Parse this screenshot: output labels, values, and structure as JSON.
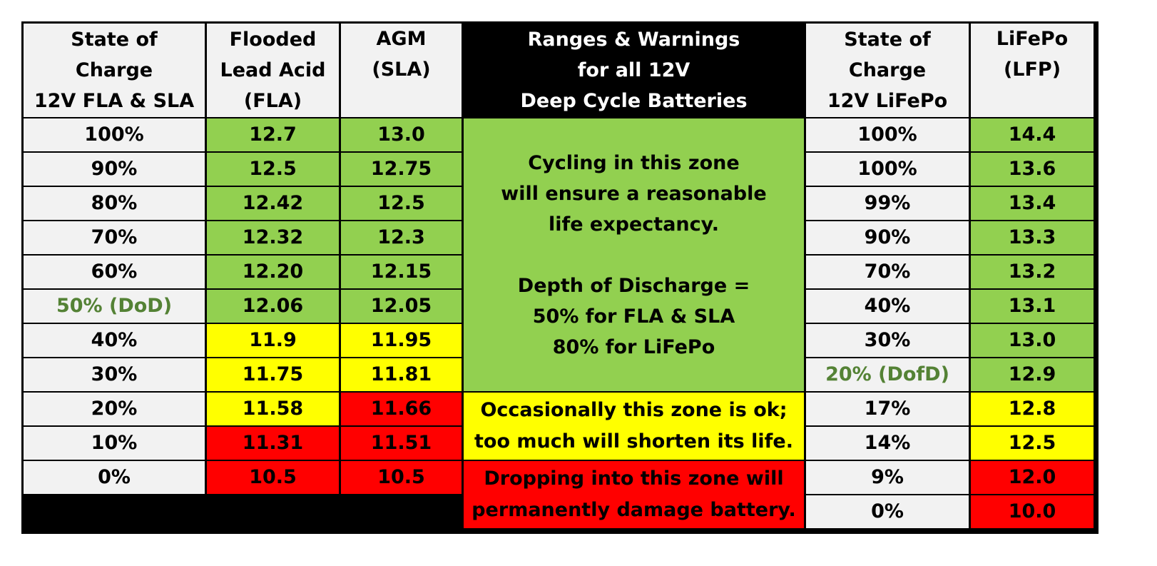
{
  "headers": {
    "soc_fla": [
      "State of",
      "Charge",
      "12V FLA & SLA"
    ],
    "flooded": [
      "Flooded",
      "Lead Acid",
      "(FLA)"
    ],
    "agm": [
      "AGM",
      "(SLA)"
    ],
    "ranges": [
      "Ranges & Warnings",
      "for all 12V",
      "Deep Cycle Batteries"
    ],
    "soc_lfp": [
      "State of",
      "Charge",
      "12V LiFePo"
    ],
    "lifepo": [
      "LiFePo",
      "(LFP)"
    ]
  },
  "lead_acid_rows": [
    {
      "soc": "100%",
      "fla": "12.7",
      "agm": "13.0"
    },
    {
      "soc": "90%",
      "fla": "12.5",
      "agm": "12.75"
    },
    {
      "soc": "80%",
      "fla": "12.42",
      "agm": "12.5"
    },
    {
      "soc": "70%",
      "fla": "12.32",
      "agm": "12.3"
    },
    {
      "soc": "60%",
      "fla": "12.20",
      "agm": "12.15"
    },
    {
      "soc": "50% (DoD)",
      "fla": "12.06",
      "agm": "12.05"
    },
    {
      "soc": "40%",
      "fla": "11.9",
      "agm": "11.95"
    },
    {
      "soc": "30%",
      "fla": "11.75",
      "agm": "11.81"
    },
    {
      "soc": "20%",
      "fla": "11.58",
      "agm": "11.66"
    },
    {
      "soc": "10%",
      "fla": "11.31",
      "agm": "11.51"
    },
    {
      "soc": "0%",
      "fla": "10.5",
      "agm": "10.5"
    }
  ],
  "lifepo_rows": [
    {
      "soc": "100%",
      "lfp": "14.4"
    },
    {
      "soc": "100%",
      "lfp": "13.6"
    },
    {
      "soc": "99%",
      "lfp": "13.4"
    },
    {
      "soc": "90%",
      "lfp": "13.3"
    },
    {
      "soc": "70%",
      "lfp": "13.2"
    },
    {
      "soc": "40%",
      "lfp": "13.1"
    },
    {
      "soc": "30%",
      "lfp": "13.0"
    },
    {
      "soc": "20% (DofD)",
      "lfp": "12.9"
    },
    {
      "soc": "17%",
      "lfp": "12.8"
    },
    {
      "soc": "14%",
      "lfp": "12.5"
    },
    {
      "soc": "9%",
      "lfp": "12.0"
    },
    {
      "soc": "0%",
      "lfp": "10.0"
    }
  ],
  "zones": {
    "green": [
      "Cycling in this zone",
      "will ensure a reasonable",
      "life expectancy.",
      "",
      "Depth of Discharge =",
      "50% for FLA & SLA",
      "80% for LiFePo"
    ],
    "yellow": [
      "Occasionally this zone is ok;",
      "too much will shorten its life."
    ],
    "red": [
      "Dropping into this zone will",
      "permanently damage battery."
    ]
  },
  "colors": {
    "green": "#92d050",
    "yellow": "#ffff00",
    "red": "#ff0000",
    "header_bg": "#f2f2f2",
    "dod_text": "#548235"
  }
}
